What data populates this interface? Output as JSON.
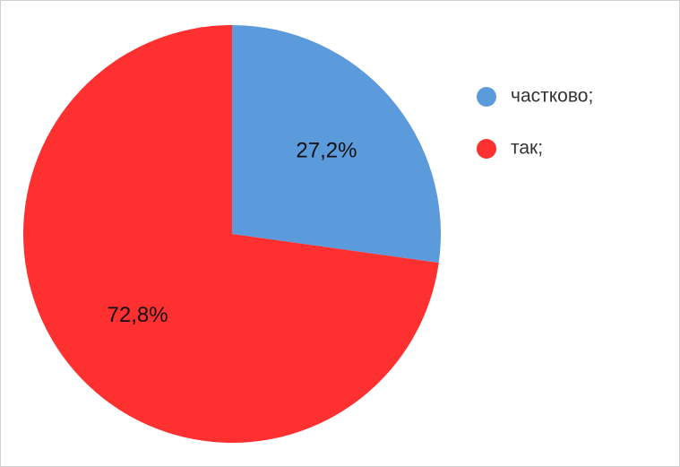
{
  "chart_data": {
    "type": "pie",
    "categories": [
      "частково;",
      "так;"
    ],
    "values": [
      27.2,
      72.8
    ],
    "value_labels": [
      "27,2%",
      "72,8%"
    ],
    "colors": [
      "#5b9bdc",
      "#ff3030"
    ],
    "legend": "right"
  }
}
